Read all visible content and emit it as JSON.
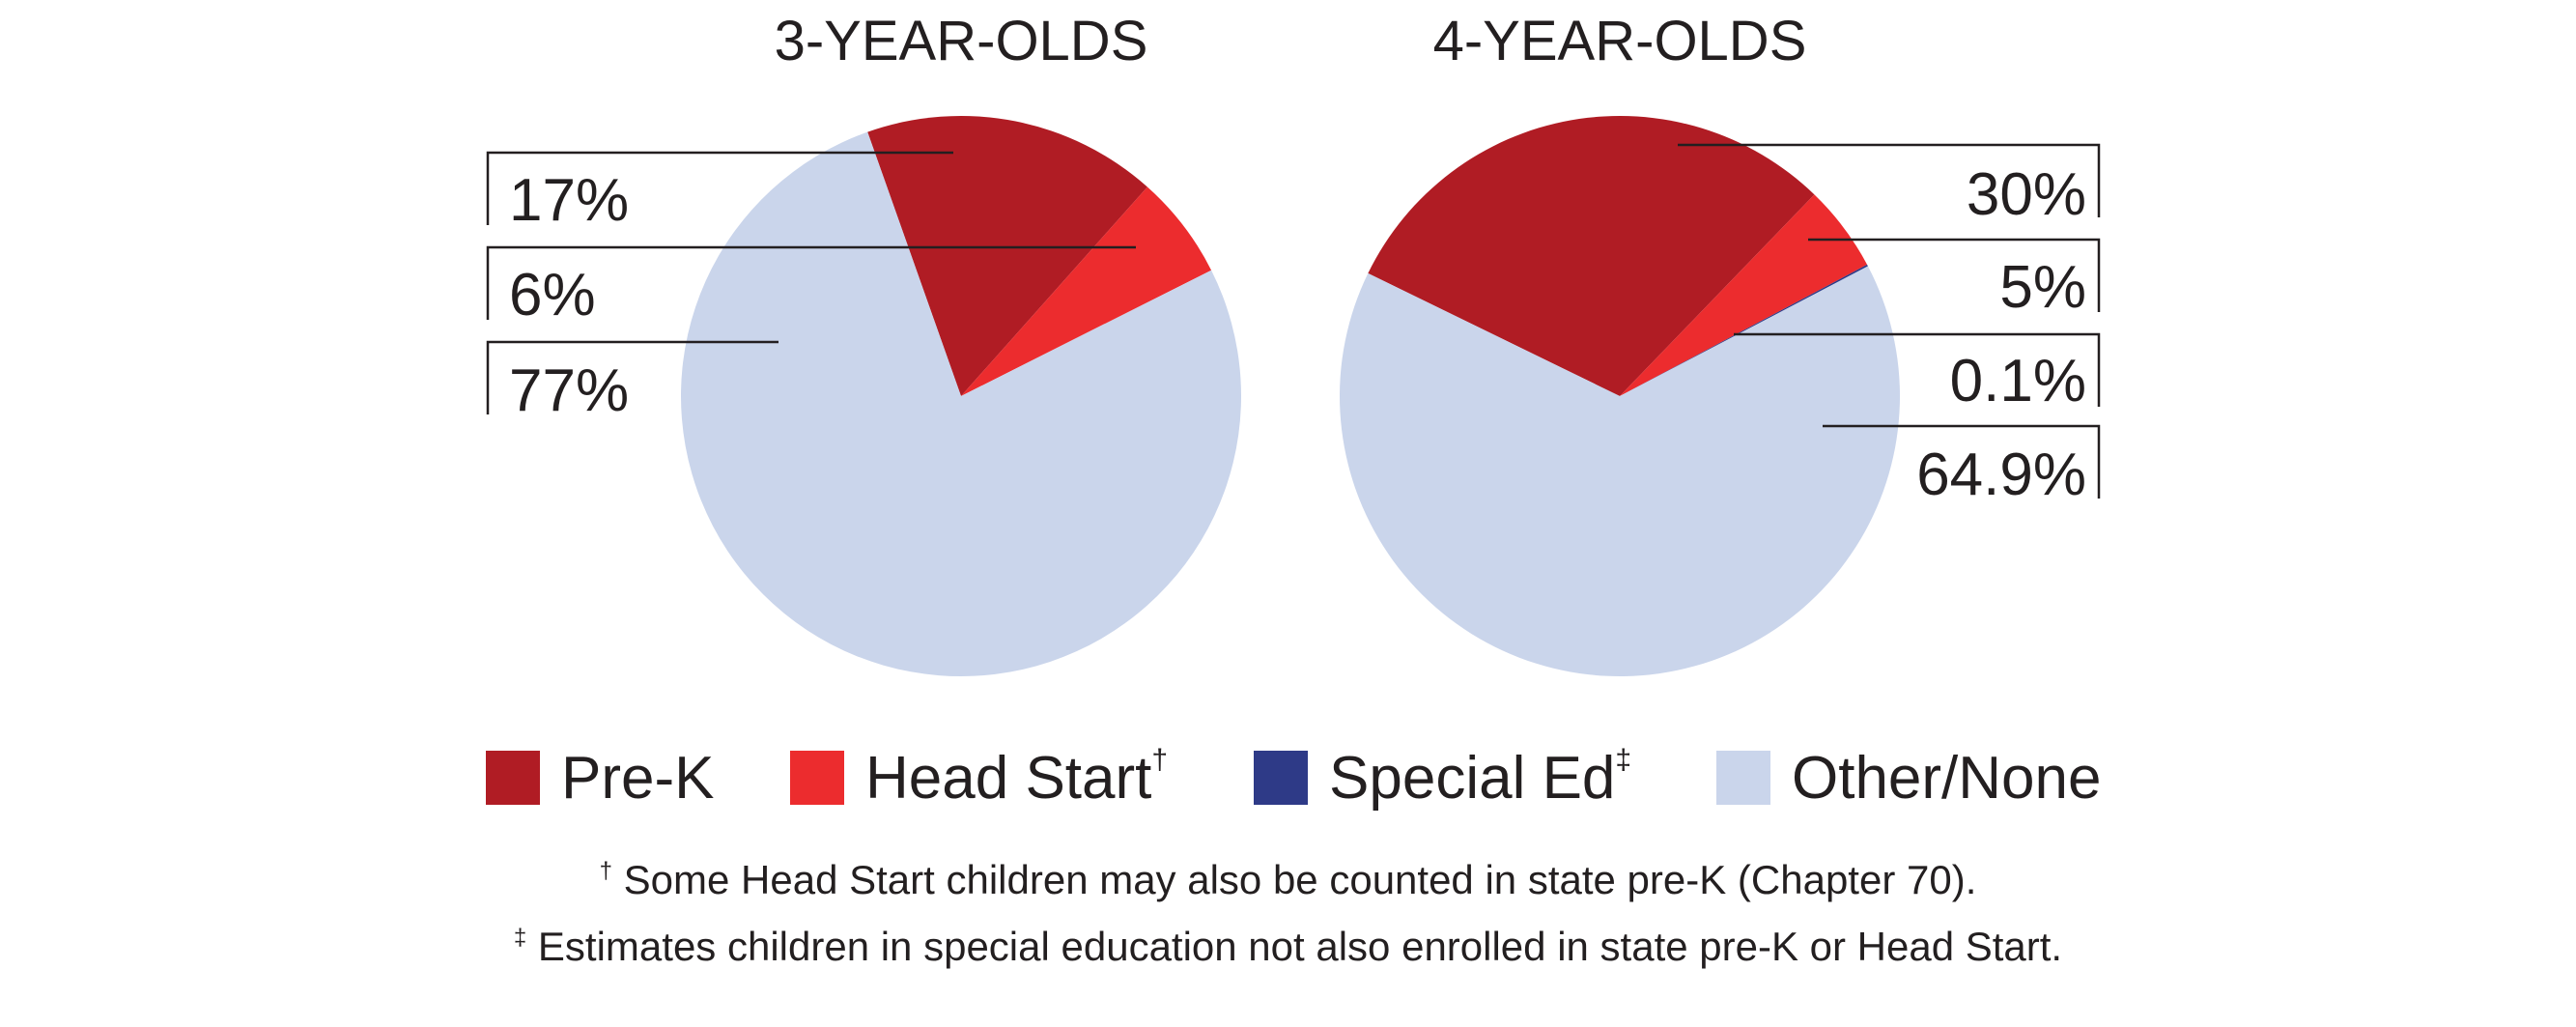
{
  "chart_data": [
    {
      "type": "pie",
      "title": "3-YEAR-OLDS",
      "slices": [
        {
          "name": "Pre-K",
          "value": 17,
          "label": "17%"
        },
        {
          "name": "Head Start",
          "value": 6,
          "label": "6%"
        },
        {
          "name": "Special Ed",
          "value": 0,
          "label": ""
        },
        {
          "name": "Other/None",
          "value": 77,
          "label": "77%"
        }
      ]
    },
    {
      "type": "pie",
      "title": "4-YEAR-OLDS",
      "slices": [
        {
          "name": "Pre-K",
          "value": 30,
          "label": "30%"
        },
        {
          "name": "Head Start",
          "value": 5,
          "label": "5%"
        },
        {
          "name": "Special Ed",
          "value": 0.1,
          "label": "0.1%"
        },
        {
          "name": "Other/None",
          "value": 64.9,
          "label": "64.9%"
        }
      ]
    }
  ],
  "legend": {
    "items": [
      {
        "label": "Pre-K",
        "mark": "",
        "color": "#b01c24"
      },
      {
        "label": "Head Start",
        "mark": "†",
        "color": "#ec2c2e"
      },
      {
        "label": "Special Ed",
        "mark": "‡",
        "color": "#2e3a87"
      },
      {
        "label": "Other/None",
        "mark": "",
        "color": "#cad5eb"
      }
    ]
  },
  "footnotes": {
    "dagger_mark": "†",
    "dagger_text": " Some Head Start children may also be counted in state pre-K (Chapter 70).",
    "ddagger_mark": "‡",
    "ddagger_text": " Estimates children in special education not also enrolled in state pre-K or Head Start."
  }
}
